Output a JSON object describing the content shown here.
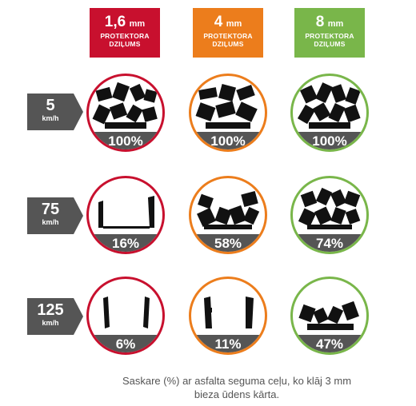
{
  "headers": [
    {
      "mm_value": "1,6",
      "mm_unit": "mm",
      "line1": "PROTEKTORA",
      "line2": "DZIĻUMS",
      "color": "#c8102e"
    },
    {
      "mm_value": "4",
      "mm_unit": "mm",
      "line1": "PROTEKTORA",
      "line2": "DZIĻUMS",
      "color": "#ec7d1c"
    },
    {
      "mm_value": "8",
      "mm_unit": "mm",
      "line1": "PROTEKTORA",
      "line2": "DZIĻUMS",
      "color": "#79b64a"
    }
  ],
  "speeds": [
    {
      "value": "5",
      "unit": "km/h"
    },
    {
      "value": "75",
      "unit": "km/h"
    },
    {
      "value": "125",
      "unit": "km/h"
    }
  ],
  "grip": [
    [
      "100%",
      "100%",
      "100%"
    ],
    [
      "16%",
      "58%",
      "74%"
    ],
    [
      "6%",
      "11%",
      "47%"
    ]
  ],
  "caption": {
    "line1": "Saskare (%) ar asfalta seguma ceļu, ko klāj 3 mm",
    "line2": "bieza ūdens kārta."
  },
  "colors": {
    "speed_tag": "#555555",
    "percent_bar": "#555555"
  }
}
